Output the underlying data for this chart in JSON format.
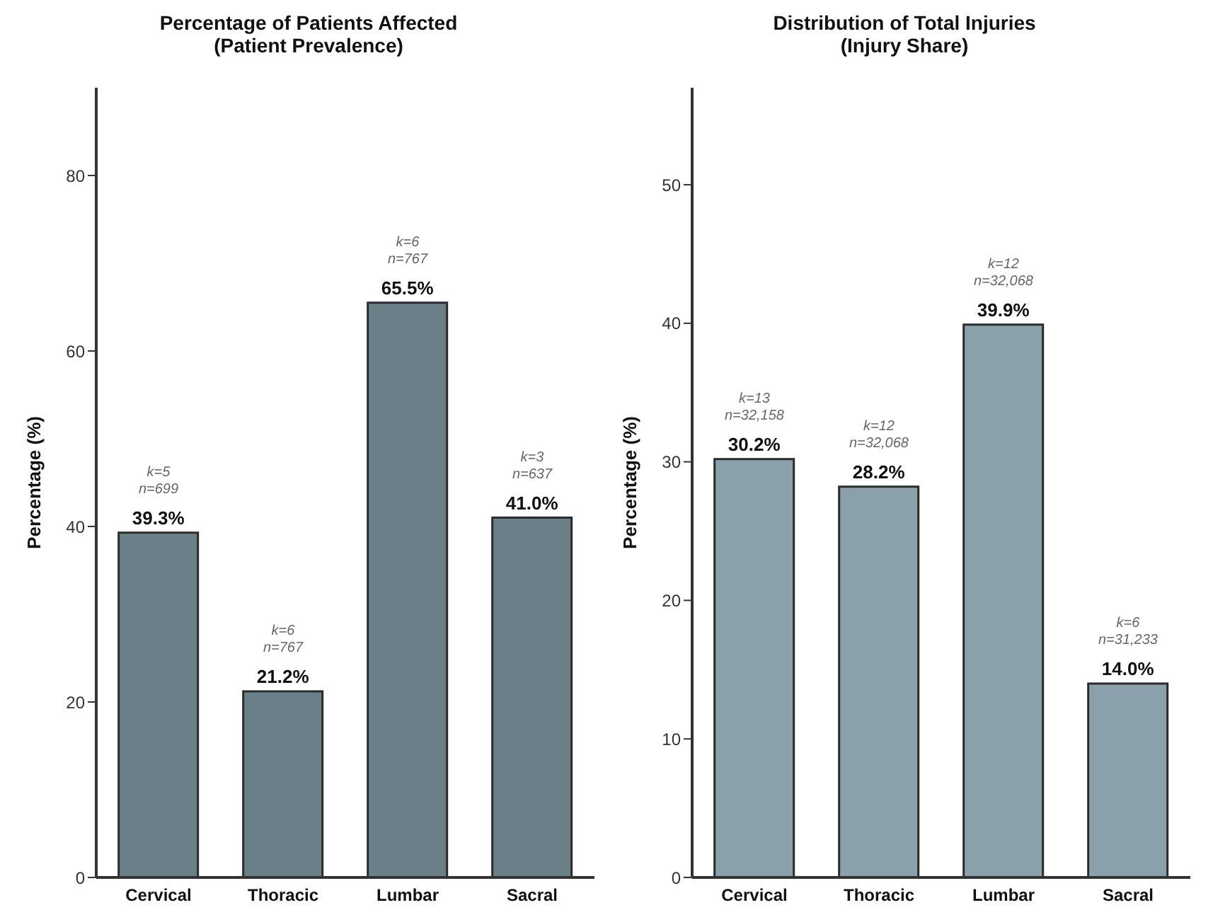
{
  "chart_data": [
    {
      "type": "bar",
      "title": "Percentage of Patients Affected\n(Patient Prevalence)",
      "ylabel": "Percentage (%)",
      "categories": [
        "Cervical",
        "Thoracic",
        "Lumbar",
        "Sacral"
      ],
      "values": [
        39.3,
        21.2,
        65.5,
        41.0
      ],
      "value_labels": [
        "39.3%",
        "21.2%",
        "65.5%",
        "41.0%"
      ],
      "color": "#6b7f89",
      "ylim": [
        0,
        90
      ],
      "yticks": [
        0,
        20,
        40,
        60,
        80
      ],
      "grid": false,
      "legend": false,
      "annotations": [
        {
          "text": "k=5\nn=699",
          "x": "Cervical",
          "y": 39.3
        },
        {
          "text": "k=6\nn=767",
          "x": "Thoracic",
          "y": 21.2
        },
        {
          "text": "k=6\nn=767",
          "x": "Lumbar",
          "y": 65.5
        },
        {
          "text": "k=3\nn=637",
          "x": "Sacral",
          "y": 41.0
        }
      ]
    },
    {
      "type": "bar",
      "title": "Distribution of Total Injuries\n(Injury Share)",
      "ylabel": "Percentage (%)",
      "categories": [
        "Cervical",
        "Thoracic",
        "Lumbar",
        "Sacral"
      ],
      "values": [
        30.2,
        28.2,
        39.9,
        14.0
      ],
      "value_labels": [
        "30.2%",
        "28.2%",
        "39.9%",
        "14.0%"
      ],
      "color": "#8aa0ab",
      "ylim": [
        0,
        57
      ],
      "yticks": [
        0,
        10,
        20,
        30,
        40,
        50
      ],
      "grid": false,
      "legend": false,
      "annotations": [
        {
          "text": "k=13\nn=32,158",
          "x": "Cervical",
          "y": 30.2
        },
        {
          "text": "k=12\nn=32,068",
          "x": "Thoracic",
          "y": 28.2
        },
        {
          "text": "k=12\nn=32,068",
          "x": "Lumbar",
          "y": 39.9
        },
        {
          "text": "k=6\nn=31,233",
          "x": "Sacral",
          "y": 14.0
        }
      ]
    }
  ]
}
